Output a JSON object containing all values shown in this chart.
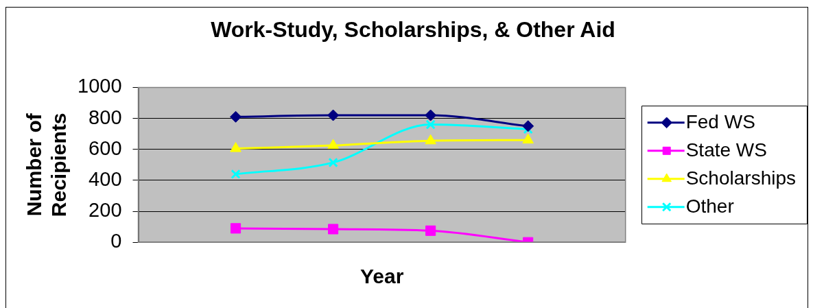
{
  "chart_data": {
    "type": "line",
    "title": "Work-Study, Scholarships, & Other Aid",
    "xlabel": "Year",
    "ylabel": "Number of Recipients",
    "categories": [
      null,
      null,
      null,
      null,
      null,
      null
    ],
    "ylim": [
      0,
      1000
    ],
    "yticks": [
      0,
      200,
      400,
      600,
      800,
      1000
    ],
    "grid": "y",
    "legend": "right",
    "series": [
      {
        "name": "Fed WS",
        "color": "#000080",
        "marker": "diamond",
        "values": [
          null,
          810,
          820,
          820,
          750,
          null
        ]
      },
      {
        "name": "State WS",
        "color": "#ff00ff",
        "marker": "square",
        "values": [
          null,
          90,
          85,
          75,
          0,
          null
        ]
      },
      {
        "name": "Scholarships",
        "color": "#ffff00",
        "marker": "triangle",
        "values": [
          null,
          605,
          625,
          655,
          660,
          null
        ]
      },
      {
        "name": "Other",
        "color": "#00ffff",
        "marker": "cross",
        "values": [
          null,
          440,
          515,
          760,
          730,
          null
        ]
      }
    ]
  }
}
